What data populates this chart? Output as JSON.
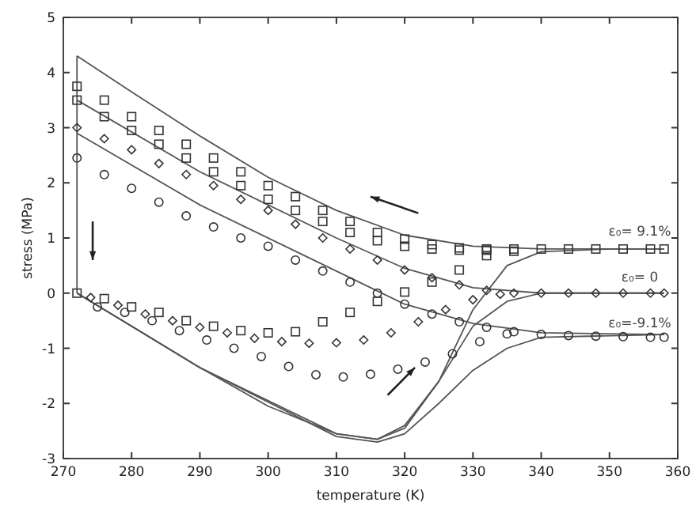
{
  "chart_data": {
    "type": "scatter",
    "xlabel": "temperature (K)",
    "ylabel": "stress (MPa)",
    "xlim": [
      270,
      360
    ],
    "ylim": [
      -3,
      5
    ],
    "xticks": [
      270,
      280,
      290,
      300,
      310,
      320,
      330,
      340,
      350,
      360
    ],
    "yticks": [
      -3,
      -2,
      -1,
      0,
      1,
      2,
      3,
      4,
      5
    ],
    "grid": false,
    "annotations": [
      "ε₀= 9.1%",
      "ε₀= 0",
      "ε₀=-9.1%"
    ],
    "series": [
      {
        "type": "line",
        "marker": "none",
        "color": "#555555",
        "x": [
          272,
          272
        ],
        "values": [
          0,
          4.3
        ]
      },
      {
        "type": "line",
        "marker": "none",
        "color": "#555555",
        "x": [
          272,
          280,
          290,
          300,
          310,
          320,
          330,
          340,
          358
        ],
        "values": [
          4.3,
          3.65,
          2.85,
          2.1,
          1.5,
          1.05,
          0.85,
          0.8,
          0.8
        ]
      },
      {
        "type": "line",
        "marker": "none",
        "color": "#555555",
        "x": [
          272,
          290,
          310,
          320,
          330,
          340,
          358
        ],
        "values": [
          3.5,
          2.2,
          1.0,
          0.45,
          0.1,
          0,
          0
        ]
      },
      {
        "type": "line",
        "marker": "none",
        "color": "#555555",
        "x": [
          272,
          290,
          310,
          320,
          330,
          340,
          358
        ],
        "values": [
          2.9,
          1.6,
          0.4,
          -0.2,
          -0.55,
          -0.72,
          -0.75
        ]
      },
      {
        "type": "line",
        "marker": "none",
        "color": "#555555",
        "x": [
          272,
          280,
          290,
          300,
          310,
          316,
          320,
          325,
          330,
          335,
          340,
          350,
          358
        ],
        "values": [
          0,
          -0.6,
          -1.35,
          -2.05,
          -2.55,
          -2.65,
          -2.45,
          -1.6,
          -0.3,
          0.5,
          0.75,
          0.8,
          0.8
        ]
      },
      {
        "type": "line",
        "marker": "none",
        "color": "#555555",
        "x": [
          272,
          290,
          310,
          316,
          320,
          325,
          330,
          335,
          340,
          358
        ],
        "values": [
          0,
          -1.35,
          -2.55,
          -2.65,
          -2.4,
          -1.6,
          -0.6,
          -0.15,
          0,
          0
        ]
      },
      {
        "type": "line",
        "marker": "none",
        "color": "#555555",
        "x": [
          272,
          290,
          310,
          316,
          320,
          325,
          330,
          335,
          340,
          358
        ],
        "values": [
          0,
          -1.35,
          -2.6,
          -2.7,
          -2.55,
          -2.0,
          -1.4,
          -1.0,
          -0.8,
          -0.75
        ]
      },
      {
        "marker": "square",
        "color": "#333333",
        "x": [
          272,
          276,
          280,
          284,
          288,
          292,
          296,
          300,
          304,
          308,
          312,
          316,
          320,
          324,
          328,
          332,
          336,
          340,
          344,
          348,
          352,
          356,
          358
        ],
        "values": [
          3.75,
          3.5,
          3.2,
          2.95,
          2.7,
          2.45,
          2.2,
          1.95,
          1.75,
          1.5,
          1.3,
          1.1,
          0.98,
          0.88,
          0.82,
          0.8,
          0.8,
          0.8,
          0.8,
          0.8,
          0.8,
          0.8,
          0.8
        ]
      },
      {
        "marker": "square",
        "color": "#333333",
        "x": [
          272,
          276,
          280,
          284,
          288,
          292,
          296,
          300,
          304,
          308,
          312,
          316,
          320,
          324,
          328,
          332
        ],
        "values": [
          3.5,
          3.2,
          2.95,
          2.7,
          2.45,
          2.2,
          1.95,
          1.7,
          1.5,
          1.3,
          1.1,
          0.95,
          0.85,
          0.8,
          0.78,
          0.78
        ]
      },
      {
        "marker": "square",
        "color": "#333333",
        "x": [
          272,
          276,
          280,
          284,
          288,
          292,
          296,
          300,
          304,
          308,
          312,
          316,
          320,
          324,
          328,
          332,
          336
        ],
        "values": [
          0,
          -0.1,
          -0.25,
          -0.35,
          -0.5,
          -0.6,
          -0.68,
          -0.72,
          -0.7,
          -0.52,
          -0.35,
          -0.15,
          0.02,
          0.2,
          0.42,
          0.68,
          0.76
        ]
      },
      {
        "marker": "diamond",
        "color": "#333333",
        "x": [
          272,
          276,
          280,
          284,
          288,
          292,
          296,
          300,
          304,
          308,
          312,
          316,
          320,
          324,
          328,
          332,
          336,
          340,
          344,
          348,
          352,
          356,
          358
        ],
        "values": [
          3.0,
          2.8,
          2.6,
          2.35,
          2.15,
          1.95,
          1.7,
          1.5,
          1.25,
          1.0,
          0.8,
          0.6,
          0.42,
          0.28,
          0.15,
          0.05,
          0,
          0,
          0,
          0,
          0,
          0,
          0
        ]
      },
      {
        "marker": "diamond",
        "color": "#333333",
        "x": [
          274,
          278,
          282,
          286,
          290,
          294,
          298,
          302,
          306,
          310,
          314,
          318,
          322,
          326,
          330,
          334
        ],
        "values": [
          -0.08,
          -0.22,
          -0.38,
          -0.5,
          -0.62,
          -0.72,
          -0.82,
          -0.88,
          -0.91,
          -0.9,
          -0.85,
          -0.72,
          -0.52,
          -0.3,
          -0.12,
          -0.02
        ]
      },
      {
        "marker": "circle",
        "color": "#333333",
        "x": [
          272,
          276,
          280,
          284,
          288,
          292,
          296,
          300,
          304,
          308,
          312,
          316,
          320,
          324,
          328,
          332,
          336,
          340,
          344,
          348,
          352,
          356,
          358
        ],
        "values": [
          2.45,
          2.15,
          1.9,
          1.65,
          1.4,
          1.2,
          1.0,
          0.85,
          0.6,
          0.4,
          0.2,
          0,
          -0.2,
          -0.38,
          -0.52,
          -0.62,
          -0.7,
          -0.75,
          -0.77,
          -0.78,
          -0.79,
          -0.8,
          -0.8
        ]
      },
      {
        "marker": "circle",
        "color": "#333333",
        "x": [
          275,
          279,
          283,
          287,
          291,
          295,
          299,
          303,
          307,
          311,
          315,
          319,
          323,
          327,
          331,
          335
        ],
        "values": [
          -0.25,
          -0.35,
          -0.5,
          -0.68,
          -0.85,
          -1.0,
          -1.15,
          -1.33,
          -1.48,
          -1.52,
          -1.47,
          -1.38,
          -1.25,
          -1.1,
          -0.88,
          -0.74
        ]
      }
    ]
  }
}
